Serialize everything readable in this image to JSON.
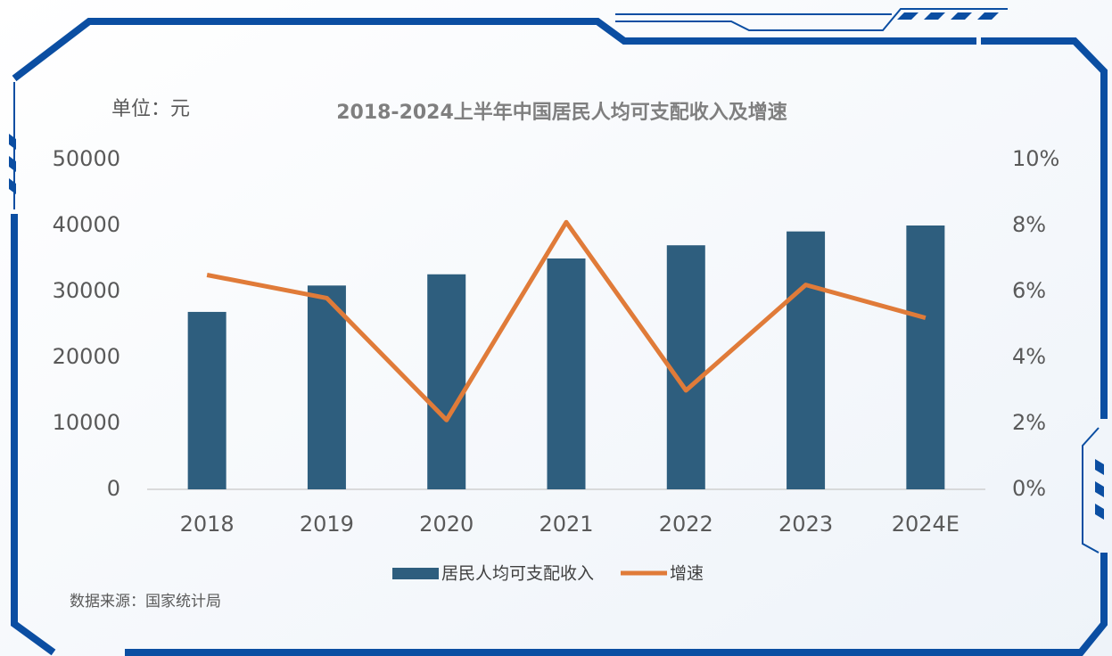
{
  "chart_data": {
    "type": "bar-line",
    "title": "2018-2024上半年中国居民人均可支配收入及增速",
    "unit_label": "单位：元",
    "source": "数据来源：国家统计局",
    "categories": [
      "2018",
      "2019",
      "2020",
      "2021",
      "2022",
      "2023",
      "2024E"
    ],
    "series": [
      {
        "name": "居民人均可支配收入",
        "type": "bar",
        "color": "#2e5e7e",
        "values": [
          26900,
          30900,
          32600,
          35000,
          37000,
          39100,
          40000
        ]
      },
      {
        "name": "增速",
        "type": "line",
        "axis": "y2",
        "color": "#e07b39",
        "values": [
          6.5,
          5.8,
          2.1,
          8.1,
          3.0,
          6.2,
          5.2
        ]
      }
    ],
    "ylim": [
      0,
      50000
    ],
    "yticks": [
      0,
      10000,
      20000,
      30000,
      40000,
      50000
    ],
    "y2lim": [
      0,
      10
    ],
    "y2ticks": [
      {
        "value": 0,
        "label": "0%"
      },
      {
        "value": 2,
        "label": "2%"
      },
      {
        "value": 4,
        "label": "4%"
      },
      {
        "value": 6,
        "label": "6%"
      },
      {
        "value": 8,
        "label": "8%"
      },
      {
        "value": 10,
        "label": "10%"
      }
    ],
    "grid": false,
    "legend": "bottom"
  }
}
